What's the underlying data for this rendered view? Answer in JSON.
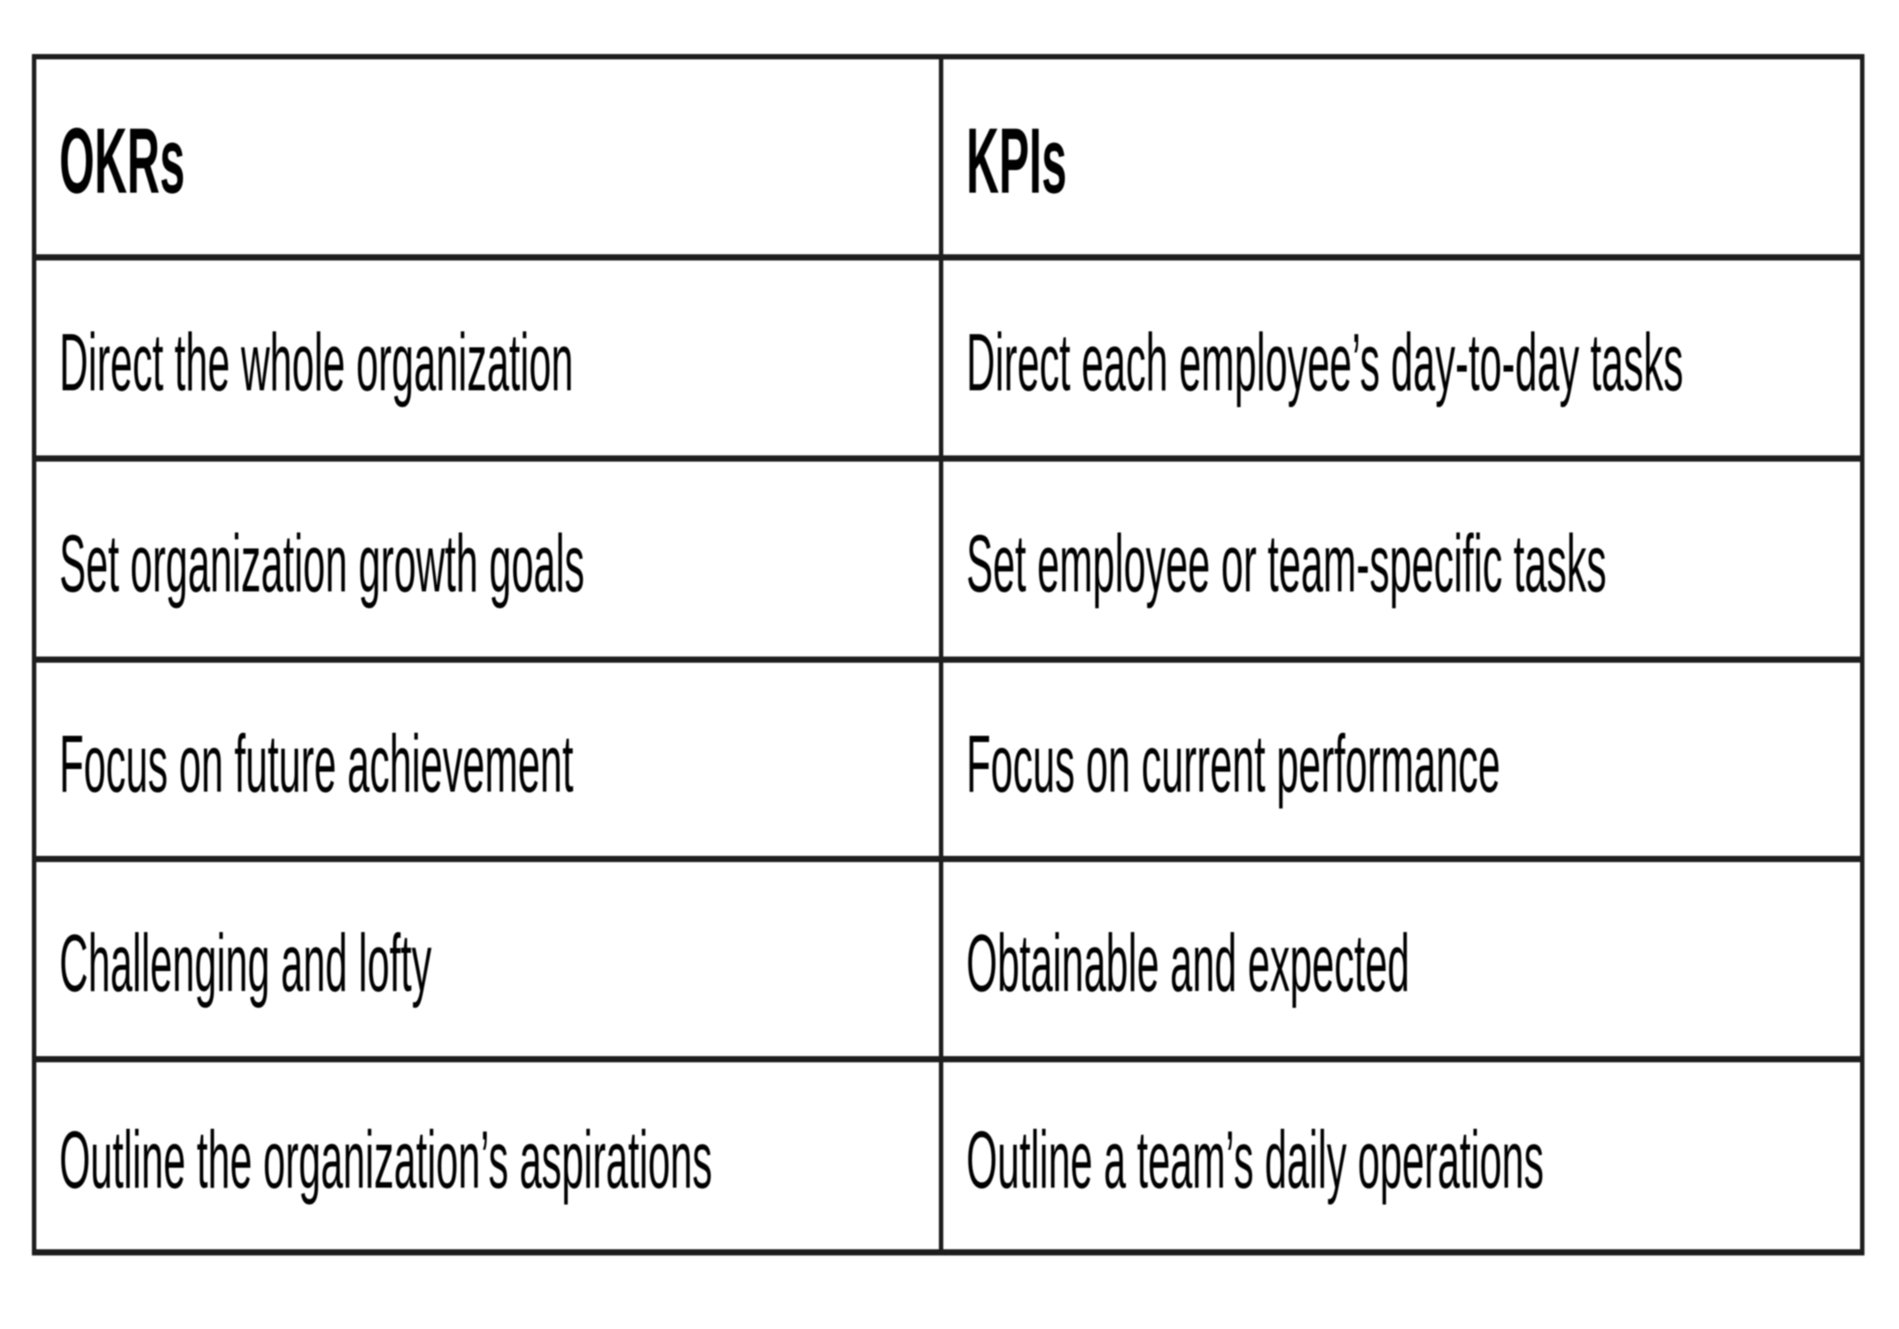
{
  "colors": {
    "background": "#ffffff",
    "border": "#1e1e1e",
    "text": "#000000"
  },
  "table": {
    "headers": [
      "OKRs",
      "KPIs"
    ],
    "rows": [
      {
        "okr": "Direct the whole organization",
        "kpi": "Direct each employee’s day-to-day tasks"
      },
      {
        "okr": "Set organization growth goals",
        "kpi": "Set employee or team-specific tasks"
      },
      {
        "okr": "Focus on future achievement",
        "kpi": "Focus on current performance"
      },
      {
        "okr": "Challenging and lofty",
        "kpi": "Obtainable and expected"
      },
      {
        "okr": "Outline the organization’s aspirations",
        "kpi": "Outline a team’s daily operations"
      }
    ]
  }
}
